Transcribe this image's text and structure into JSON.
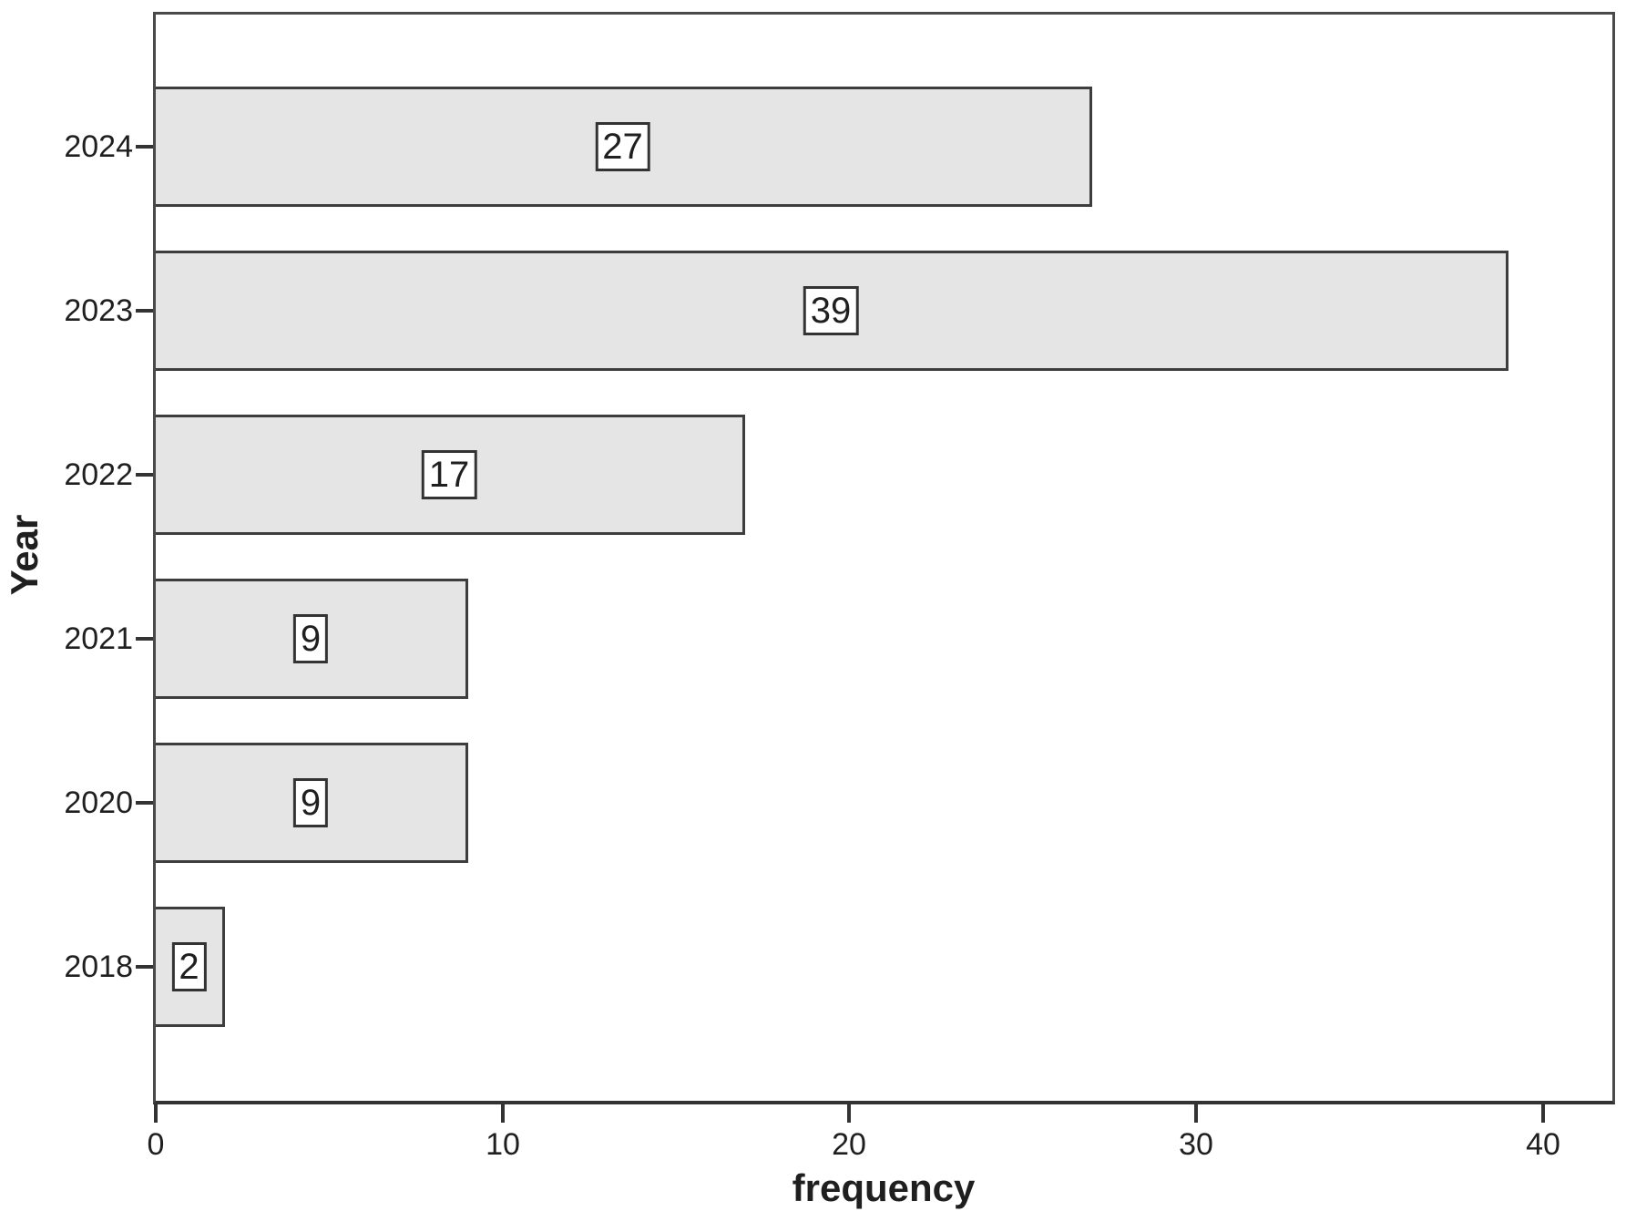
{
  "chart_data": {
    "type": "bar",
    "orientation": "horizontal",
    "title": "",
    "categories": [
      "2024",
      "2023",
      "2022",
      "2021",
      "2020",
      "2018"
    ],
    "values": [
      27,
      39,
      17,
      9,
      9,
      2
    ],
    "xlabel": "frequency",
    "ylabel": "Year",
    "x_ticks": [
      0,
      10,
      20,
      30,
      40
    ],
    "xlim": [
      0,
      42
    ],
    "grid": false,
    "legend": null,
    "value_labels_shown": true,
    "colors": {
      "background": "#ffffff",
      "bar_fill": "#e5e5e5",
      "bar_border": "#3d3d3d",
      "plot_border": "#4a4a4a",
      "axis_line": "#333333",
      "text": "#1f1f1f",
      "value_box_bg": "#ffffff",
      "value_box_border": "#333333"
    }
  }
}
